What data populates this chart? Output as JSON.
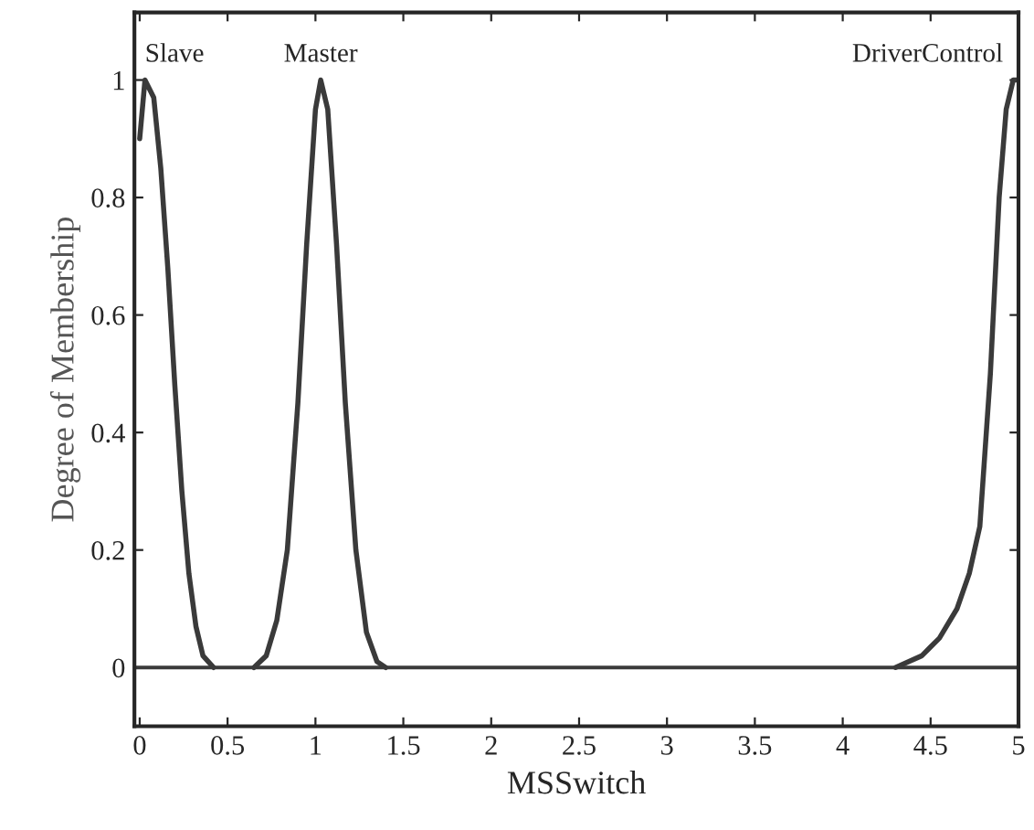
{
  "chart_data": {
    "type": "line",
    "xlabel": "MSSwitch",
    "ylabel": "Degree of Membership",
    "xlim": [
      -0.03,
      5
    ],
    "ylim": [
      -0.1,
      1.115
    ],
    "xticks": [
      0,
      0.5,
      1,
      1.5,
      2,
      2.5,
      3,
      3.5,
      4,
      4.5,
      5
    ],
    "yticks": [
      0,
      0.2,
      0.4,
      0.6,
      0.8,
      1
    ],
    "grid": false,
    "legend": false,
    "marker": "none",
    "line_style": "solid",
    "ref_lines": [
      {
        "axis": "y",
        "value": 0,
        "color": "#3a3a3a"
      }
    ],
    "series": [
      {
        "name": "Slave",
        "color": "#3a3a3a",
        "x": [
          0,
          0.03,
          0.08,
          0.12,
          0.16,
          0.2,
          0.24,
          0.28,
          0.32,
          0.36,
          0.42
        ],
        "values": [
          0.9,
          1,
          0.97,
          0.85,
          0.68,
          0.48,
          0.3,
          0.16,
          0.07,
          0.02,
          0
        ]
      },
      {
        "name": "Master",
        "color": "#3a3a3a",
        "x": [
          0.65,
          0.72,
          0.78,
          0.84,
          0.9,
          0.95,
          1.0,
          1.03,
          1.07,
          1.12,
          1.17,
          1.23,
          1.29,
          1.35,
          1.4
        ],
        "values": [
          0,
          0.02,
          0.08,
          0.2,
          0.45,
          0.72,
          0.95,
          1,
          0.95,
          0.72,
          0.45,
          0.2,
          0.06,
          0.01,
          0
        ]
      },
      {
        "name": "DriverControl",
        "color": "#3a3a3a",
        "x": [
          4.3,
          4.45,
          4.55,
          4.65,
          4.72,
          4.78,
          4.84,
          4.89,
          4.93,
          4.97,
          5
        ],
        "values": [
          0,
          0.02,
          0.05,
          0.1,
          0.16,
          0.24,
          0.5,
          0.8,
          0.95,
          1,
          1
        ]
      }
    ]
  }
}
